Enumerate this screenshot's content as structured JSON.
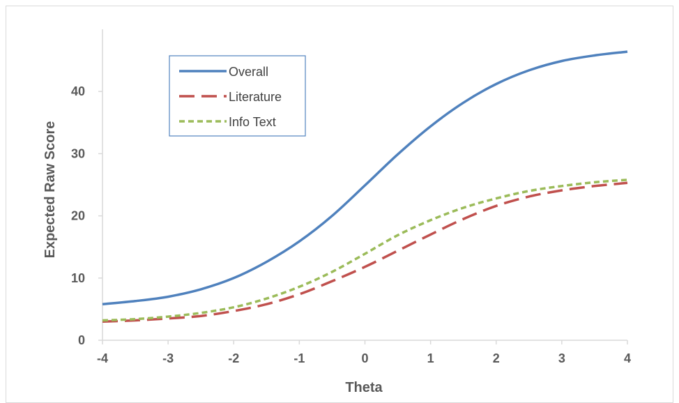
{
  "chart_data": {
    "type": "line",
    "title": "",
    "xlabel": "Theta",
    "ylabel": "Expected Raw Score",
    "xlim": [
      -4,
      4
    ],
    "ylim": [
      0,
      50
    ],
    "x_ticks": [
      -4,
      -3,
      -2,
      -1,
      0,
      1,
      2,
      3,
      4
    ],
    "y_ticks": [
      0,
      10,
      20,
      30,
      40
    ],
    "grid": false,
    "legend_position": "top-left",
    "x": [
      -4,
      -3.5,
      -3,
      -2.5,
      -2,
      -1.5,
      -1,
      -0.5,
      0,
      0.5,
      1,
      1.5,
      2,
      2.5,
      3,
      3.5,
      4
    ],
    "series": [
      {
        "name": "Overall",
        "color": "#4f81bd",
        "dash": "solid",
        "values": [
          5.8,
          6.3,
          7.0,
          8.2,
          10.0,
          12.6,
          15.9,
          20.0,
          24.9,
          29.9,
          34.4,
          38.2,
          41.2,
          43.4,
          44.9,
          45.8,
          46.4
        ]
      },
      {
        "name": "Literature",
        "color": "#c0504d",
        "dash": "long-dash",
        "values": [
          3.0,
          3.2,
          3.5,
          3.9,
          4.7,
          5.8,
          7.4,
          9.5,
          11.8,
          14.4,
          17.0,
          19.5,
          21.6,
          23.1,
          24.1,
          24.8,
          25.3
        ]
      },
      {
        "name": "Info Text",
        "color": "#9bbb59",
        "dash": "short-dash",
        "values": [
          3.2,
          3.4,
          3.8,
          4.4,
          5.3,
          6.7,
          8.6,
          11.0,
          13.9,
          16.9,
          19.3,
          21.3,
          22.8,
          24.0,
          24.8,
          25.4,
          25.8
        ]
      }
    ]
  }
}
